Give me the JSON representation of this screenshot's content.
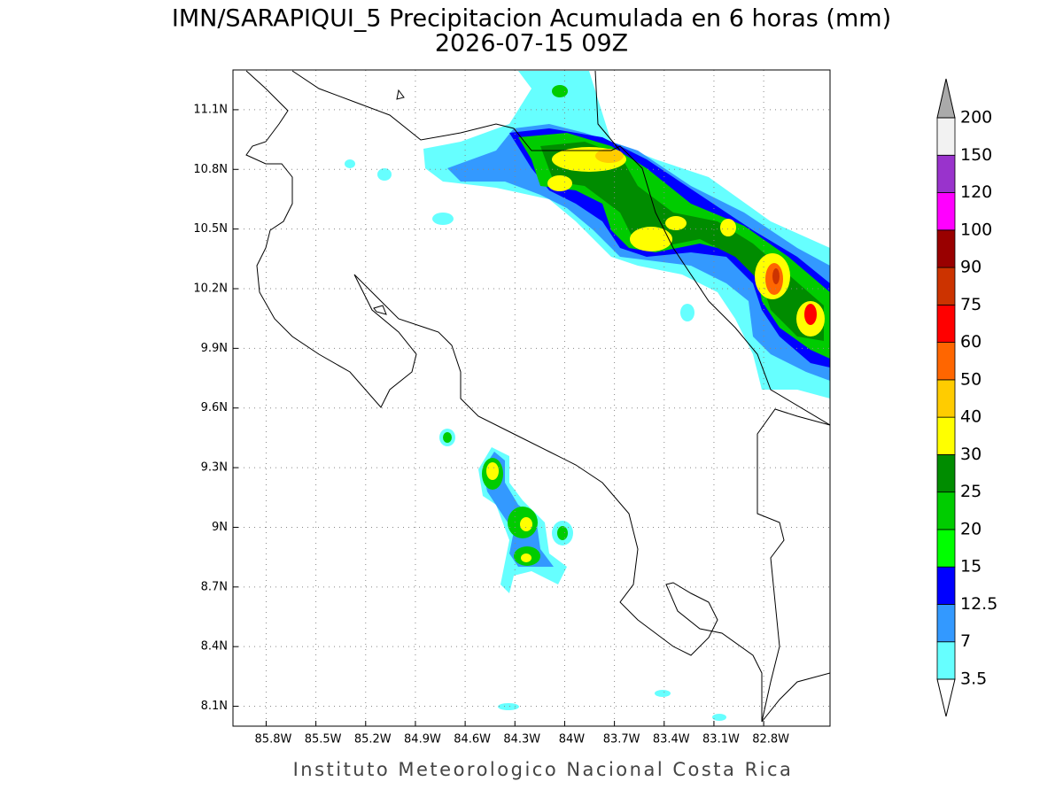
{
  "header": {
    "title": "IMN/SARAPIQUI_5 Precipitacion Acumulada en 6 horas (mm)",
    "subtitle": "2026-07-15 09Z"
  },
  "map": {
    "lonlim": [
      -86.0,
      -82.4
    ],
    "latlim": [
      8.0,
      11.3
    ],
    "grid": true,
    "lon_ticks": [
      {
        "value": -85.8,
        "label": "85.8W"
      },
      {
        "value": -85.5,
        "label": "85.5W"
      },
      {
        "value": -85.2,
        "label": "85.2W"
      },
      {
        "value": -84.9,
        "label": "84.9W"
      },
      {
        "value": -84.6,
        "label": "84.6W"
      },
      {
        "value": -84.3,
        "label": "84.3W"
      },
      {
        "value": -84.0,
        "label": "84W"
      },
      {
        "value": -83.7,
        "label": "83.7W"
      },
      {
        "value": -83.4,
        "label": "83.4W"
      },
      {
        "value": -83.1,
        "label": "83.1W"
      },
      {
        "value": -82.8,
        "label": "82.8W"
      }
    ],
    "lat_ticks": [
      {
        "value": 8.1,
        "label": "8.1N"
      },
      {
        "value": 8.4,
        "label": "8.4N"
      },
      {
        "value": 8.7,
        "label": "8.7N"
      },
      {
        "value": 9.0,
        "label": "9N"
      },
      {
        "value": 9.3,
        "label": "9.3N"
      },
      {
        "value": 9.6,
        "label": "9.6N"
      },
      {
        "value": 9.9,
        "label": "9.9N"
      },
      {
        "value": 10.2,
        "label": "10.2N"
      },
      {
        "value": 10.5,
        "label": "10.5N"
      },
      {
        "value": 10.8,
        "label": "10.8N"
      },
      {
        "value": 11.1,
        "label": "11.1N"
      }
    ]
  },
  "colorbar": {
    "levels": [
      3.5,
      7,
      12.5,
      15,
      20,
      25,
      30,
      40,
      50,
      60,
      75,
      90,
      100,
      120,
      150,
      200
    ],
    "colors": [
      "#66ffff",
      "#3399ff",
      "#0000ff",
      "#00ff00",
      "#00cc00",
      "#008c00",
      "#ffff00",
      "#ffcc00",
      "#ff6600",
      "#ff0000",
      "#cc3300",
      "#990000",
      "#ff00ff",
      "#9933cc",
      "#f2f2f2"
    ],
    "under_color": "#ffffff",
    "over_color": "#aaaaaa"
  },
  "footer": "Instituto Meteorologico Nacional Costa Rica"
}
